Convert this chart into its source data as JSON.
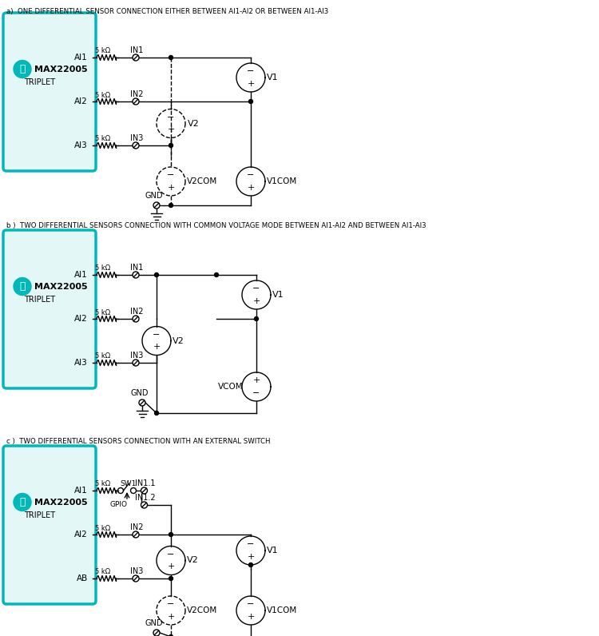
{
  "bg_color": "#ffffff",
  "teal_color": "#00b8b8",
  "teal_fill": "#e3f7f7",
  "title_a": "a)  ONE DIFFERENTIAL SENSOR CONNECTION EITHER BETWEEN AI1-AI2 OR BETWEEN AI1-AI3",
  "title_b": "b )  TWO DIFFERENTIAL SENSORS CONNECTION WITH COMMON VOLTAGE MODE BETWEEN AI1-AI2 AND BETWEEN AI1-AI3",
  "title_c": "c )  TWO DIFFERENTIAL SENSORS CONNECTION WITH AN EXTERNAL SWITCH",
  "figsize": [
    7.5,
    7.96
  ],
  "dpi": 100
}
